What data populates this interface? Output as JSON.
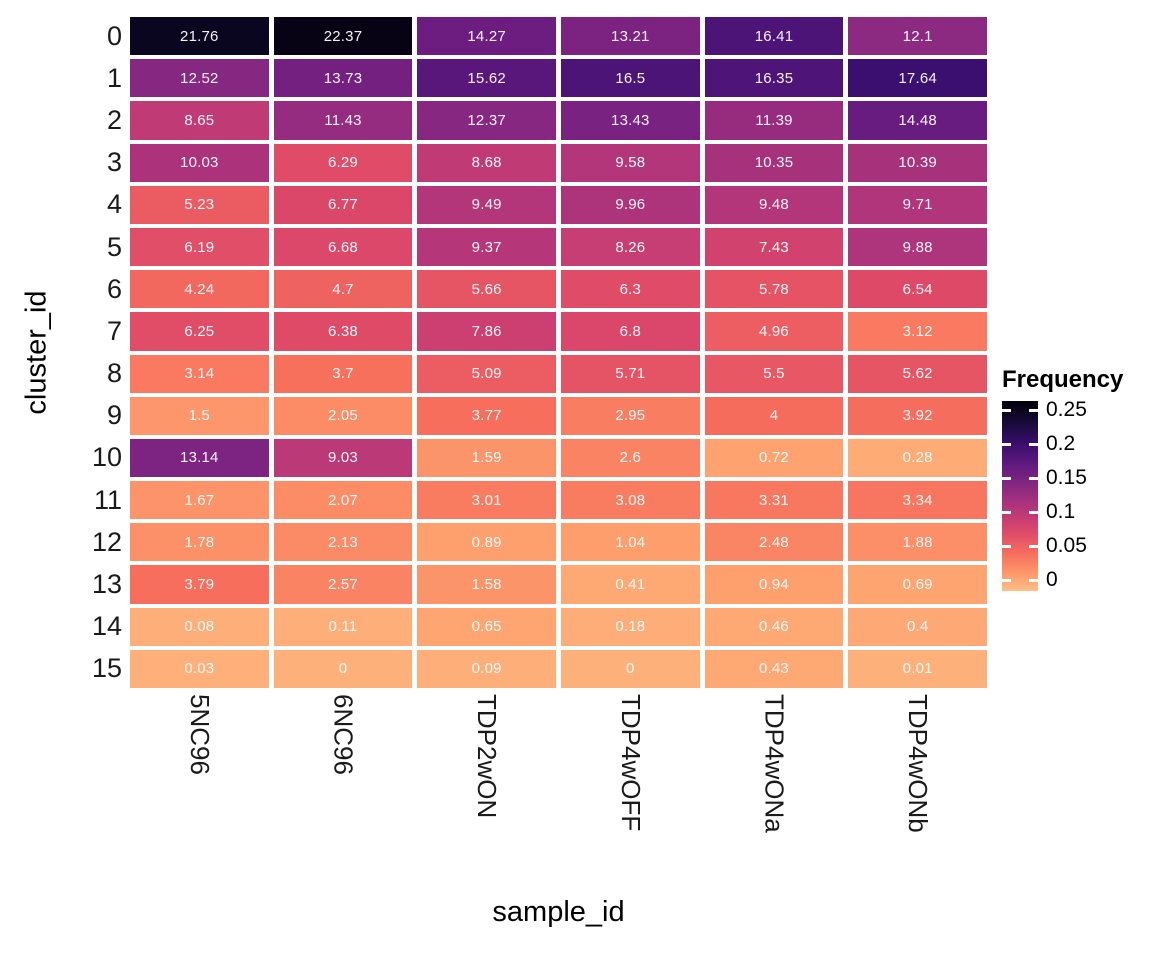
{
  "chart_data": {
    "type": "heatmap",
    "xlabel": "sample_id",
    "ylabel": "cluster_id",
    "columns": [
      "5NC96",
      "6NC96",
      "TDP2wON",
      "TDP4wOFF",
      "TDP4wONa",
      "TDP4wONb"
    ],
    "rows": [
      "0",
      "1",
      "2",
      "3",
      "4",
      "5",
      "6",
      "7",
      "8",
      "9",
      "10",
      "11",
      "12",
      "13",
      "14",
      "15"
    ],
    "values": [
      [
        "21.76",
        "22.37",
        "14.27",
        "13.21",
        "16.41",
        "12.1"
      ],
      [
        "12.52",
        "13.73",
        "15.62",
        "16.5",
        "16.35",
        "17.64"
      ],
      [
        "8.65",
        "11.43",
        "12.37",
        "13.43",
        "11.39",
        "14.48"
      ],
      [
        "10.03",
        "6.29",
        "8.68",
        "9.58",
        "10.35",
        "10.39"
      ],
      [
        "5.23",
        "6.77",
        "9.49",
        "9.96",
        "9.48",
        "9.71"
      ],
      [
        "6.19",
        "6.68",
        "9.37",
        "8.26",
        "7.43",
        "9.88"
      ],
      [
        "4.24",
        "4.7",
        "5.66",
        "6.3",
        "5.78",
        "6.54"
      ],
      [
        "6.25",
        "6.38",
        "7.86",
        "6.8",
        "4.96",
        "3.12"
      ],
      [
        "3.14",
        "3.7",
        "5.09",
        "5.71",
        "5.5",
        "5.62"
      ],
      [
        "1.5",
        "2.05",
        "3.77",
        "2.95",
        "4",
        "3.92"
      ],
      [
        "13.14",
        "9.03",
        "1.59",
        "2.6",
        "0.72",
        "0.28"
      ],
      [
        "1.67",
        "2.07",
        "3.01",
        "3.08",
        "3.31",
        "3.34"
      ],
      [
        "1.78",
        "2.13",
        "0.89",
        "1.04",
        "2.48",
        "1.88"
      ],
      [
        "3.79",
        "2.57",
        "1.58",
        "0.41",
        "0.94",
        "0.69"
      ],
      [
        "0.08",
        "0.11",
        "0.65",
        "0.18",
        "0.46",
        "0.4"
      ],
      [
        "0.03",
        "0",
        "0.09",
        "0",
        "0.43",
        "0.01"
      ]
    ],
    "value_unit": "percent of cells per cluster (legend scale is fraction)",
    "legend": {
      "title": "Frequency",
      "ticks": [
        "0.25",
        "0.2",
        "0.15",
        "0.1",
        "0.05",
        "0"
      ],
      "range": [
        0,
        0.25
      ],
      "position": "right"
    },
    "grid": "white gaps between tiles",
    "colormap": {
      "name": "magma-reversed (0 = light orange, 0.25 = black)",
      "anchors": [
        "#000004",
        "#160b39",
        "#3b0f70",
        "#641a80",
        "#8c2981",
        "#b73779",
        "#de4968",
        "#f76f5c",
        "#fe9f6d",
        "#fecf92",
        "#fcfdbf"
      ],
      "position_at_zero_value": 0.835,
      "position_slope_per_percent": 0.036
    }
  },
  "colors": {
    "background": "#ffffff",
    "cell_text": "#ffffff",
    "axis_tick_text": "#1a1a1a",
    "axis_title_text": "#000000",
    "legend_text": "#000000"
  }
}
